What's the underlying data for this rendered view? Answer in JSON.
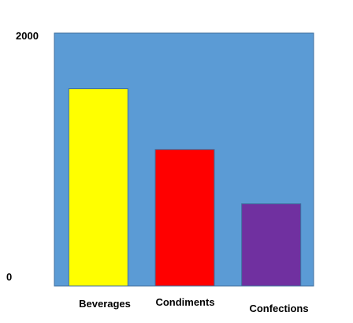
{
  "chart_data": {
    "type": "bar",
    "categories": [
      "Beverages",
      "Condiments",
      "Confections"
    ],
    "values": [
      1560,
      1080,
      650
    ],
    "ylim": [
      0,
      2000
    ],
    "ytick_labels": [
      "0",
      "2000"
    ],
    "grid": false,
    "legend": "none",
    "colors": {
      "plot_background": "#5b9bd5",
      "plot_border": "#3f6f9e",
      "bars": [
        "#ffff00",
        "#ff0000",
        "#7030a0"
      ]
    }
  }
}
